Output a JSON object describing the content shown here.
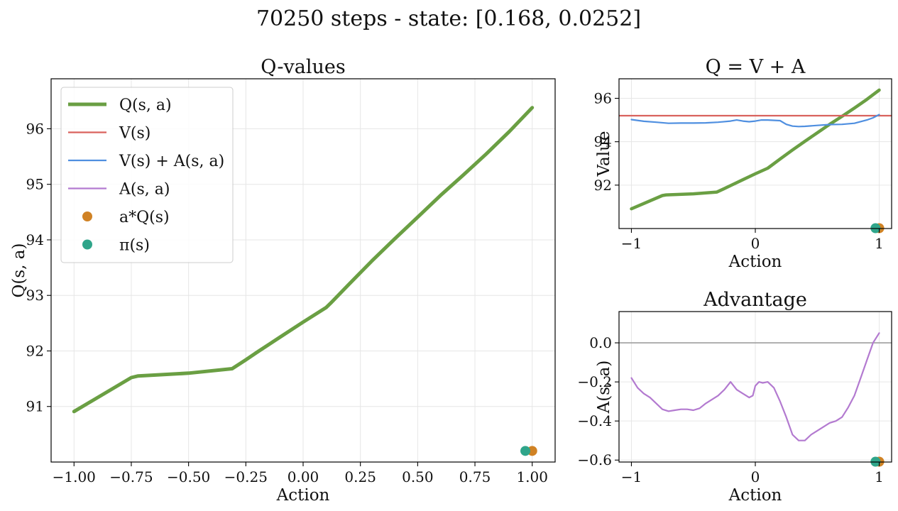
{
  "figure": {
    "title": "70250 steps - state: [0.168, 0.0252]"
  },
  "colors": {
    "q": "#6a9f43",
    "v": "#d9625d",
    "va": "#4f8fe0",
    "adv": "#b37ad0",
    "a_star": "#d08224",
    "pi": "#2fa58a",
    "zero_line": "#9e9e9e"
  },
  "chart_data": [
    {
      "id": "qvalues",
      "type": "line",
      "title": "Q-values",
      "xlabel": "Action",
      "ylabel": "Q(s, a)",
      "xlim": [
        -1.1,
        1.1
      ],
      "ylim": [
        90.0,
        96.9
      ],
      "xticks": [
        -1.0,
        -0.75,
        -0.5,
        -0.25,
        0.0,
        0.25,
        0.5,
        0.75,
        1.0
      ],
      "xtick_labels": [
        "−1.00",
        "−0.75",
        "−0.50",
        "−0.25",
        "0.00",
        "0.25",
        "0.50",
        "0.75",
        "1.00"
      ],
      "yticks": [
        91,
        92,
        93,
        94,
        95,
        96
      ],
      "ytick_labels": [
        "91",
        "92",
        "93",
        "94",
        "95",
        "96"
      ],
      "grid": true,
      "legend": {
        "placement": "upper-left",
        "entries": [
          {
            "label": "Q(s, a)",
            "kind": "line",
            "color_key": "q",
            "thick": true
          },
          {
            "label": "V(s)",
            "kind": "line",
            "color_key": "v"
          },
          {
            "label": "V(s) + A(s, a)",
            "kind": "line",
            "color_key": "va"
          },
          {
            "label": "A(s, a)",
            "kind": "line",
            "color_key": "adv"
          },
          {
            "label": "a*Q(s)",
            "kind": "dot",
            "color_key": "a_star"
          },
          {
            "label": "π(s)",
            "kind": "dot",
            "color_key": "pi"
          }
        ]
      },
      "series": [
        {
          "name": "Q(s, a)",
          "color_key": "q",
          "x": [
            -1.0,
            -0.75,
            -0.72,
            -0.5,
            -0.31,
            -0.25,
            -0.2,
            -0.1,
            0.0,
            0.1,
            0.12,
            0.2,
            0.3,
            0.4,
            0.5,
            0.6,
            0.7,
            0.8,
            0.9,
            1.0
          ],
          "y": [
            90.91,
            91.52,
            91.55,
            91.6,
            91.68,
            91.84,
            91.98,
            92.25,
            92.52,
            92.78,
            92.86,
            93.2,
            93.62,
            94.02,
            94.41,
            94.8,
            95.17,
            95.55,
            95.95,
            96.38
          ]
        }
      ],
      "points": [
        {
          "name": "a*Q(s)",
          "x": 1.0,
          "y": 90.2,
          "color_key": "a_star"
        },
        {
          "name": "π(s)",
          "x": 0.97,
          "y": 90.2,
          "color_key": "pi"
        }
      ]
    },
    {
      "id": "q_equals_v_plus_a",
      "type": "line",
      "title": "Q = V + A",
      "xlabel": "Action",
      "ylabel": "Value",
      "xlim": [
        -1.1,
        1.1
      ],
      "ylim": [
        90.0,
        96.9
      ],
      "xticks": [
        -1,
        0,
        1
      ],
      "xtick_labels": [
        "−1",
        "0",
        "1"
      ],
      "yticks": [
        92,
        94,
        96
      ],
      "ytick_labels": [
        "92",
        "94",
        "96"
      ],
      "grid": true,
      "series": [
        {
          "name": "Q(s, a)",
          "color_key": "q",
          "x": [
            -1.0,
            -0.75,
            -0.72,
            -0.5,
            -0.31,
            -0.25,
            -0.2,
            -0.1,
            0.0,
            0.1,
            0.12,
            0.2,
            0.3,
            0.4,
            0.5,
            0.6,
            0.7,
            0.8,
            0.9,
            1.0
          ],
          "y": [
            90.91,
            91.52,
            91.55,
            91.6,
            91.68,
            91.84,
            91.98,
            92.25,
            92.52,
            92.78,
            92.86,
            93.2,
            93.62,
            94.02,
            94.41,
            94.8,
            95.17,
            95.55,
            95.95,
            96.38
          ]
        },
        {
          "name": "V(s)",
          "color_key": "v",
          "x": [
            -1.1,
            1.1
          ],
          "y": [
            95.2,
            95.2
          ]
        },
        {
          "name": "V(s) + A(s, a)",
          "color_key": "va",
          "x": [
            -1.0,
            -0.9,
            -0.8,
            -0.7,
            -0.6,
            -0.5,
            -0.4,
            -0.3,
            -0.2,
            -0.15,
            -0.1,
            -0.05,
            0.0,
            0.05,
            0.1,
            0.2,
            0.25,
            0.3,
            0.35,
            0.4,
            0.5,
            0.6,
            0.7,
            0.8,
            0.9,
            0.95,
            1.0
          ],
          "y": [
            95.02,
            94.94,
            94.9,
            94.85,
            94.86,
            94.86,
            94.87,
            94.9,
            94.95,
            95.0,
            94.95,
            94.92,
            94.95,
            95.0,
            95.0,
            94.97,
            94.8,
            94.72,
            94.7,
            94.71,
            94.75,
            94.79,
            94.8,
            94.85,
            95.0,
            95.1,
            95.25
          ]
        }
      ],
      "points": [
        {
          "name": "a*Q(s)",
          "x": 1.0,
          "y": 90.0,
          "color_key": "a_star"
        },
        {
          "name": "π(s)",
          "x": 0.97,
          "y": 90.0,
          "color_key": "pi"
        }
      ]
    },
    {
      "id": "advantage",
      "type": "line",
      "title": "Advantage",
      "xlabel": "Action",
      "ylabel": "A(s, a)",
      "xlim": [
        -1.1,
        1.1
      ],
      "ylim": [
        -0.61,
        0.16
      ],
      "xticks": [
        -1,
        0,
        1
      ],
      "xtick_labels": [
        "−1",
        "0",
        "1"
      ],
      "yticks": [
        -0.6,
        -0.4,
        -0.2,
        0.0
      ],
      "ytick_labels": [
        "−0.6",
        "−0.4",
        "−0.2",
        "0.0"
      ],
      "grid": true,
      "hlines": [
        {
          "y": 0.0,
          "color_key": "zero_line"
        }
      ],
      "series": [
        {
          "name": "A(s, a)",
          "color_key": "adv",
          "x": [
            -1.0,
            -0.95,
            -0.9,
            -0.85,
            -0.8,
            -0.75,
            -0.7,
            -0.65,
            -0.6,
            -0.55,
            -0.5,
            -0.45,
            -0.4,
            -0.35,
            -0.3,
            -0.25,
            -0.2,
            -0.15,
            -0.1,
            -0.05,
            -0.02,
            0.0,
            0.03,
            0.06,
            0.1,
            0.15,
            0.2,
            0.25,
            0.3,
            0.35,
            0.4,
            0.45,
            0.5,
            0.55,
            0.6,
            0.65,
            0.7,
            0.75,
            0.8,
            0.85,
            0.9,
            0.95,
            1.0
          ],
          "y": [
            -0.18,
            -0.23,
            -0.26,
            -0.28,
            -0.31,
            -0.34,
            -0.35,
            -0.345,
            -0.34,
            -0.34,
            -0.345,
            -0.335,
            -0.31,
            -0.29,
            -0.27,
            -0.24,
            -0.2,
            -0.24,
            -0.26,
            -0.28,
            -0.27,
            -0.22,
            -0.2,
            -0.205,
            -0.2,
            -0.23,
            -0.3,
            -0.38,
            -0.47,
            -0.5,
            -0.5,
            -0.47,
            -0.45,
            -0.43,
            -0.41,
            -0.4,
            -0.38,
            -0.33,
            -0.27,
            -0.18,
            -0.09,
            0.0,
            0.05
          ]
        }
      ],
      "points": [
        {
          "name": "a*Q(s)",
          "x": 1.0,
          "y": -0.61,
          "color_key": "a_star"
        },
        {
          "name": "π(s)",
          "x": 0.97,
          "y": -0.61,
          "color_key": "pi"
        }
      ]
    }
  ]
}
